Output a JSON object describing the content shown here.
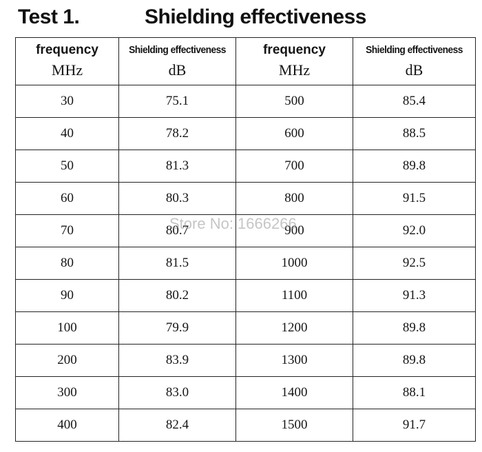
{
  "heading": {
    "test_label": "Test 1.",
    "title": "Shielding effectiveness"
  },
  "columns": {
    "frequency_label": "frequency",
    "frequency_unit": "MHz",
    "se_label": "Shielding effectiveness",
    "se_unit": "dB"
  },
  "left_rows": [
    {
      "freq": "30",
      "se": "75.1"
    },
    {
      "freq": "40",
      "se": "78.2"
    },
    {
      "freq": "50",
      "se": "81.3"
    },
    {
      "freq": "60",
      "se": "80.3"
    },
    {
      "freq": "70",
      "se": "80.7"
    },
    {
      "freq": "80",
      "se": "81.5"
    },
    {
      "freq": "90",
      "se": "80.2"
    },
    {
      "freq": "100",
      "se": "79.9"
    },
    {
      "freq": "200",
      "se": "83.9"
    },
    {
      "freq": "300",
      "se": "83.0"
    },
    {
      "freq": "400",
      "se": "82.4"
    }
  ],
  "right_rows": [
    {
      "freq": "500",
      "se": "85.4"
    },
    {
      "freq": "600",
      "se": "88.5"
    },
    {
      "freq": "700",
      "se": "89.8"
    },
    {
      "freq": "800",
      "se": "91.5"
    },
    {
      "freq": "900",
      "se": "92.0"
    },
    {
      "freq": "1000",
      "se": "92.5"
    },
    {
      "freq": "1100",
      "se": "91.3"
    },
    {
      "freq": "1200",
      "se": "89.8"
    },
    {
      "freq": "1300",
      "se": "89.8"
    },
    {
      "freq": "1400",
      "se": "88.1"
    },
    {
      "freq": "1500",
      "se": "91.7"
    }
  ],
  "watermark": "Store No: 1666266"
}
